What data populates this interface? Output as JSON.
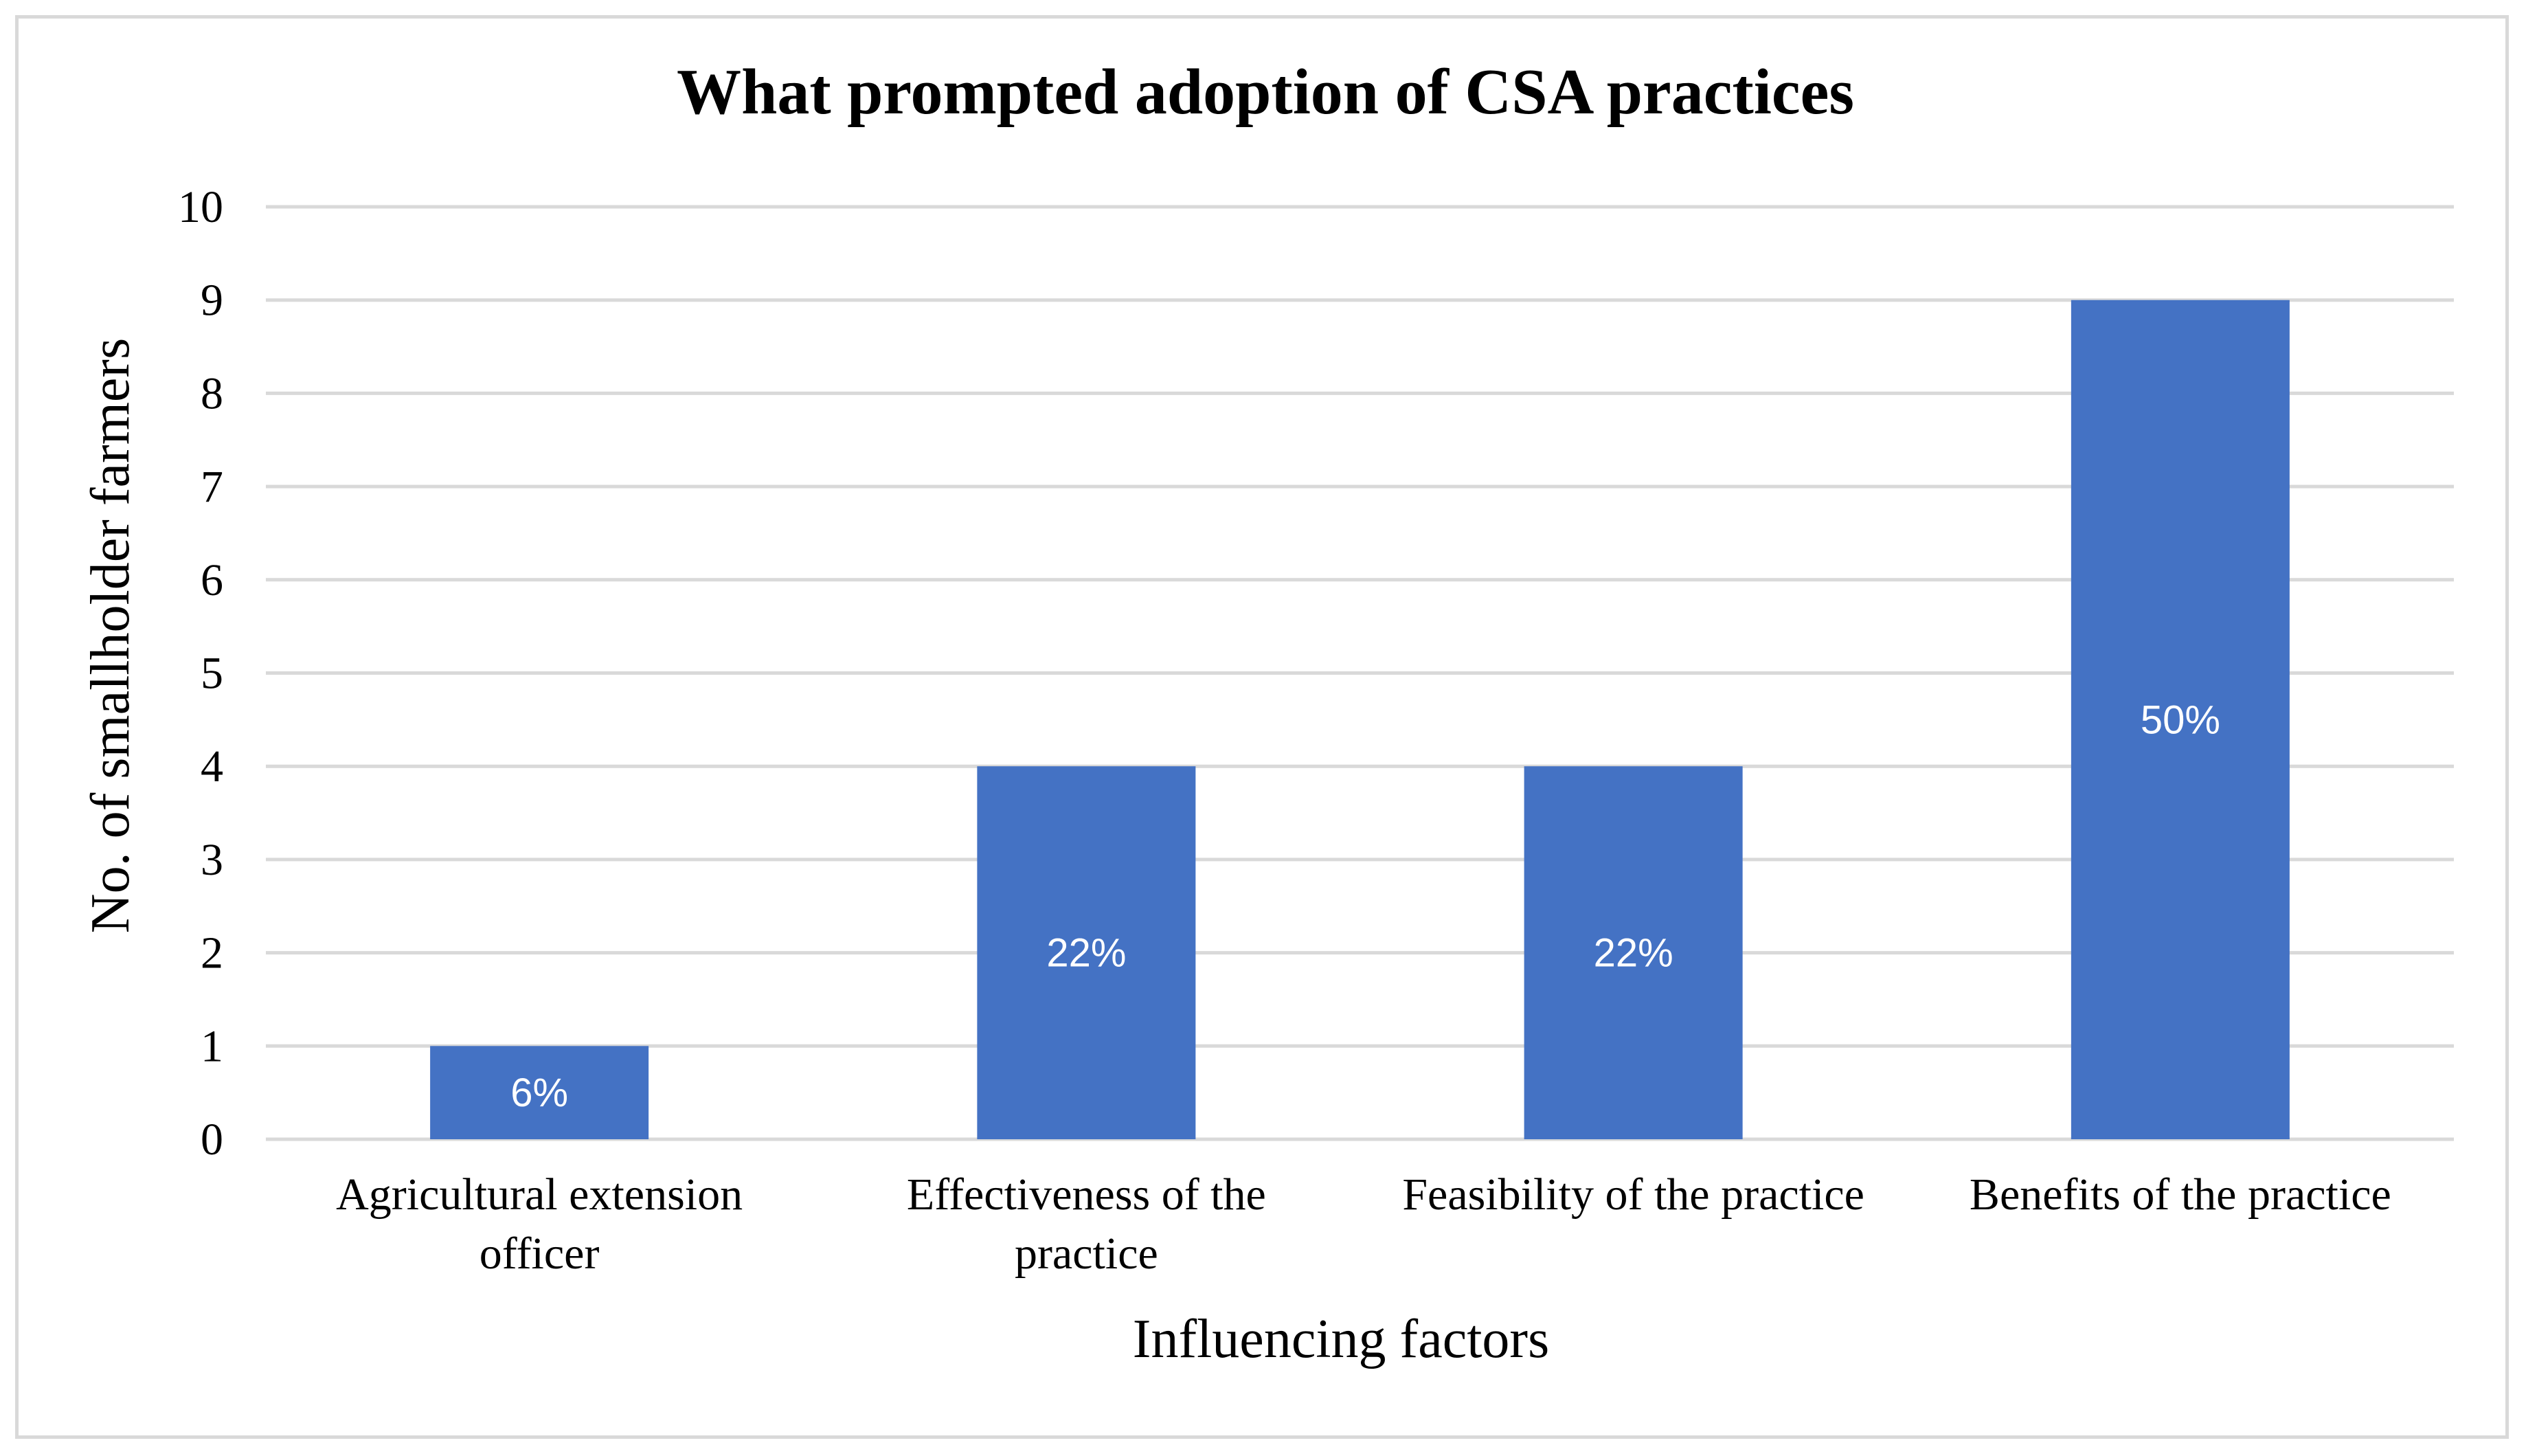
{
  "chart_data": {
    "type": "bar",
    "title": "What prompted adoption of CSA practices",
    "xlabel": "Influencing factors",
    "ylabel": "No. of smallholder farmers",
    "ylim": [
      0,
      10
    ],
    "yticks": [
      "0",
      "1",
      "2",
      "3",
      "4",
      "5",
      "6",
      "7",
      "8",
      "9",
      "10"
    ],
    "grid": true,
    "legend": "none",
    "categories": [
      [
        "Agricultural extension",
        "officer"
      ],
      [
        "Effectiveness of the",
        "practice"
      ],
      [
        "Feasibility of the practice"
      ],
      [
        "Benefits of the practice"
      ]
    ],
    "values": [
      1,
      4,
      4,
      9
    ],
    "data_labels": [
      "6%",
      "22%",
      "22%",
      "50%"
    ],
    "colors": {
      "bar": "#4472c4",
      "grid": "#d9d9d9",
      "label": "#ffffff"
    }
  }
}
